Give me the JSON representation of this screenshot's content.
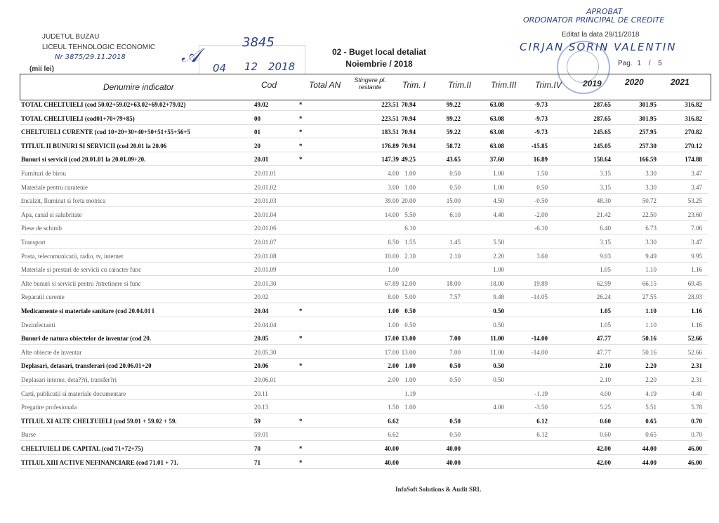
{
  "header": {
    "county": "JUDETUL BUZAU",
    "institution": "LICEUL TEHNOLOGIC ECONOMIC",
    "unit": "(mii lei)",
    "title": "02 - Buget local detaliat",
    "period": "Noiembrie / 2018",
    "edit_date": "Editat la data 29/11/2018",
    "page_label": "Pag.",
    "page_current": "1",
    "page_sep": "/",
    "page_total": "5"
  },
  "handwriting": {
    "approved": "APROBAT",
    "ordonator": "ORDONATOR PRINCIPAL DE CREDITE",
    "name": "CIRJAN SORIN VALENTIN",
    "reg_left": "Nr 3875/29.11.2018",
    "reg_number": "3845",
    "reg_day": "04",
    "reg_month": "12",
    "reg_year": "2018"
  },
  "columns": [
    "Denumire indicator",
    "Cod",
    "Total AN",
    "Stingere pl. restante",
    "Trim. I",
    "Trim.II",
    "Trim.III",
    "Trim.IV",
    "2019",
    "2020",
    "2021"
  ],
  "rows": [
    {
      "bold": true,
      "cells": [
        "TOTAL CHELTUIELI  (cod 50.02+59.02+63.02+69.02+79.02)",
        "49.02",
        "*",
        "223.51",
        "",
        "70.94",
        "99.22",
        "63.08",
        "-9.73",
        "287.65",
        "301.95",
        "316.82"
      ]
    },
    {
      "bold": true,
      "cells": [
        "TOTAL CHELTUIELI  (cod01+70+79+85)",
        "00",
        "*",
        "223.51",
        "",
        "70.94",
        "99.22",
        "63.08",
        "-9.73",
        "287.65",
        "301.95",
        "316.82"
      ]
    },
    {
      "bold": true,
      "cells": [
        "CHELTUIELI CURENTE  (cod 10+20+30+40+50+51+55+56+5",
        "01",
        "*",
        "183.51",
        "",
        "70.94",
        "59.22",
        "63.08",
        "-9.73",
        "245.65",
        "257.95",
        "270.82"
      ]
    },
    {
      "bold": true,
      "cells": [
        "TITLUL II  BUNURI SI SERVICII  (cod 20.01 la 20.06",
        "20",
        "*",
        "176.89",
        "",
        "70.94",
        "58.72",
        "63.08",
        "-15.85",
        "245.05",
        "257.30",
        "270.12"
      ]
    },
    {
      "bold": true,
      "cells": [
        "Bunuri si servicii   (cod 20.01.01 la 20.01.09+20.",
        "20.01",
        "*",
        "147.39",
        "",
        "49.25",
        "43.65",
        "37.60",
        "16.89",
        "158.64",
        "166.59",
        "174.88"
      ]
    },
    {
      "bold": false,
      "cells": [
        "Furnituri de birou",
        "20.01.01",
        "",
        "4.00",
        "",
        "1.00",
        "0.50",
        "1.00",
        "1.50",
        "3.15",
        "3.30",
        "3.47"
      ]
    },
    {
      "bold": false,
      "cells": [
        "Materiale pentru curatenie",
        "20.01.02",
        "",
        "3.00",
        "",
        "1.00",
        "0.50",
        "1.00",
        "0.50",
        "3.15",
        "3.30",
        "3.47"
      ]
    },
    {
      "bold": false,
      "cells": [
        "žncalzit, Iluminat si forta motrica",
        "20.01.03",
        "",
        "39.00",
        "",
        "20.00",
        "15.00",
        "4.50",
        "-0.50",
        "48.30",
        "50.72",
        "53.25"
      ]
    },
    {
      "bold": false,
      "cells": [
        "Apa, canal si salubritate",
        "20.01.04",
        "",
        "14.00",
        "",
        "5.50",
        "6.10",
        "4.40",
        "-2.00",
        "21.42",
        "22.50",
        "23.60"
      ]
    },
    {
      "bold": false,
      "cells": [
        "Piese de schimb",
        "20.01.06",
        "",
        "",
        "",
        "6.10",
        "",
        "",
        "-6.10",
        "6.40",
        "6.73",
        "7.06"
      ]
    },
    {
      "bold": false,
      "cells": [
        "Transport",
        "20.01.07",
        "",
        "8.50",
        "",
        "1.55",
        "1.45",
        "5.50",
        "",
        "3.15",
        "3.30",
        "3.47"
      ]
    },
    {
      "bold": false,
      "cells": [
        "Posta, telecomunicatii, radio, tv, internet",
        "20.01.08",
        "",
        "10.00",
        "",
        "2.10",
        "2.10",
        "2.20",
        "3.60",
        "9.03",
        "9.49",
        "9.95"
      ]
    },
    {
      "bold": false,
      "cells": [
        "Materiale si prestari de servicii cu caracter func",
        "20.01.09",
        "",
        "1.00",
        "",
        "",
        "",
        "1.00",
        "",
        "1.05",
        "1.10",
        "1.16"
      ]
    },
    {
      "bold": false,
      "cells": [
        "Alte bunuri si servicii pentru ?ntretinere si func",
        "20.01.30",
        "",
        "67.89",
        "",
        "12.00",
        "18.00",
        "18.00",
        "19.89",
        "62.99",
        "66.15",
        "69.45"
      ]
    },
    {
      "bold": false,
      "cells": [
        "Reparatii curente",
        "20.02",
        "",
        "8.00",
        "",
        "5.00",
        "7.57",
        "9.48",
        "-14.05",
        "26.24",
        "27.55",
        "28.93"
      ]
    },
    {
      "bold": true,
      "cells": [
        "Medicamente si materiale sanitare  (cod 20.04.01 l",
        "20.04",
        "*",
        "1.00",
        "",
        "0.50",
        "",
        "0.50",
        "",
        "1.05",
        "1.10",
        "1.16"
      ]
    },
    {
      "bold": false,
      "cells": [
        "Dezinfectanti",
        "20.04.04",
        "",
        "1.00",
        "",
        "0.50",
        "",
        "0.50",
        "",
        "1.05",
        "1.10",
        "1.16"
      ]
    },
    {
      "bold": true,
      "cells": [
        "Bunuri de natura obiectelor de inventar  (cod 20.",
        "20.05",
        "*",
        "17.00",
        "",
        "13.00",
        "7.00",
        "11.00",
        "-14.00",
        "47.77",
        "50.16",
        "52.66"
      ]
    },
    {
      "bold": false,
      "cells": [
        "Alte obiecte de inventar",
        "20.05.30",
        "",
        "17.00",
        "",
        "13.00",
        "7.00",
        "11.00",
        "-14.00",
        "47.77",
        "50.16",
        "52.66"
      ]
    },
    {
      "bold": true,
      "cells": [
        "Deplasari, detasari, transferari  (cod 20.06.01+20",
        "20.06",
        "*",
        "2.00",
        "",
        "1.00",
        "0.50",
        "0.50",
        "",
        "2.10",
        "2.20",
        "2.31"
      ]
    },
    {
      "bold": false,
      "cells": [
        "Deplasari interne, deta??ri, transfer?ri",
        "20.06.01",
        "",
        "2.00",
        "",
        "1.00",
        "0.50",
        "0.50",
        "",
        "2.10",
        "2.20",
        "2.31"
      ]
    },
    {
      "bold": false,
      "cells": [
        "Carti, publicatii si materiale documentare",
        "20.11",
        "",
        "",
        "",
        "1.19",
        "",
        "",
        "-1.19",
        "4.00",
        "4.19",
        "4.40"
      ]
    },
    {
      "bold": false,
      "cells": [
        "Pregatire profesionala",
        "20.13",
        "",
        "1.50",
        "",
        "1.00",
        "",
        "4.00",
        "-3.50",
        "5.25",
        "5.51",
        "5.78"
      ]
    },
    {
      "bold": true,
      "cells": [
        "TITLUL XI ALTE CHELTUIELI (cod 59.01 + 59.02 + 59.",
        "59",
        "*",
        "6.62",
        "",
        "",
        "0.50",
        "",
        "6.12",
        "0.60",
        "0.65",
        "0.70"
      ]
    },
    {
      "bold": false,
      "cells": [
        "Burse",
        "59.01",
        "",
        "6.62",
        "",
        "",
        "0.50",
        "",
        "6.12",
        "0.60",
        "0.65",
        "0.70"
      ]
    },
    {
      "bold": true,
      "cells": [
        "CHELTUIELI DE CAPITAL  (cod 71+72+75)",
        "70",
        "*",
        "40.00",
        "",
        "",
        "40.00",
        "",
        "",
        "42.00",
        "44.00",
        "46.00"
      ]
    },
    {
      "bold": true,
      "cells": [
        "TITLUL XIII  ACTIVE NEFINANCIARE  (cod 71.01 + 71.",
        "71",
        "*",
        "40.00",
        "",
        "",
        "40.00",
        "",
        "",
        "42.00",
        "44.00",
        "46.00"
      ]
    }
  ],
  "footer": "InfoSoft Solutions & Audit SRL"
}
